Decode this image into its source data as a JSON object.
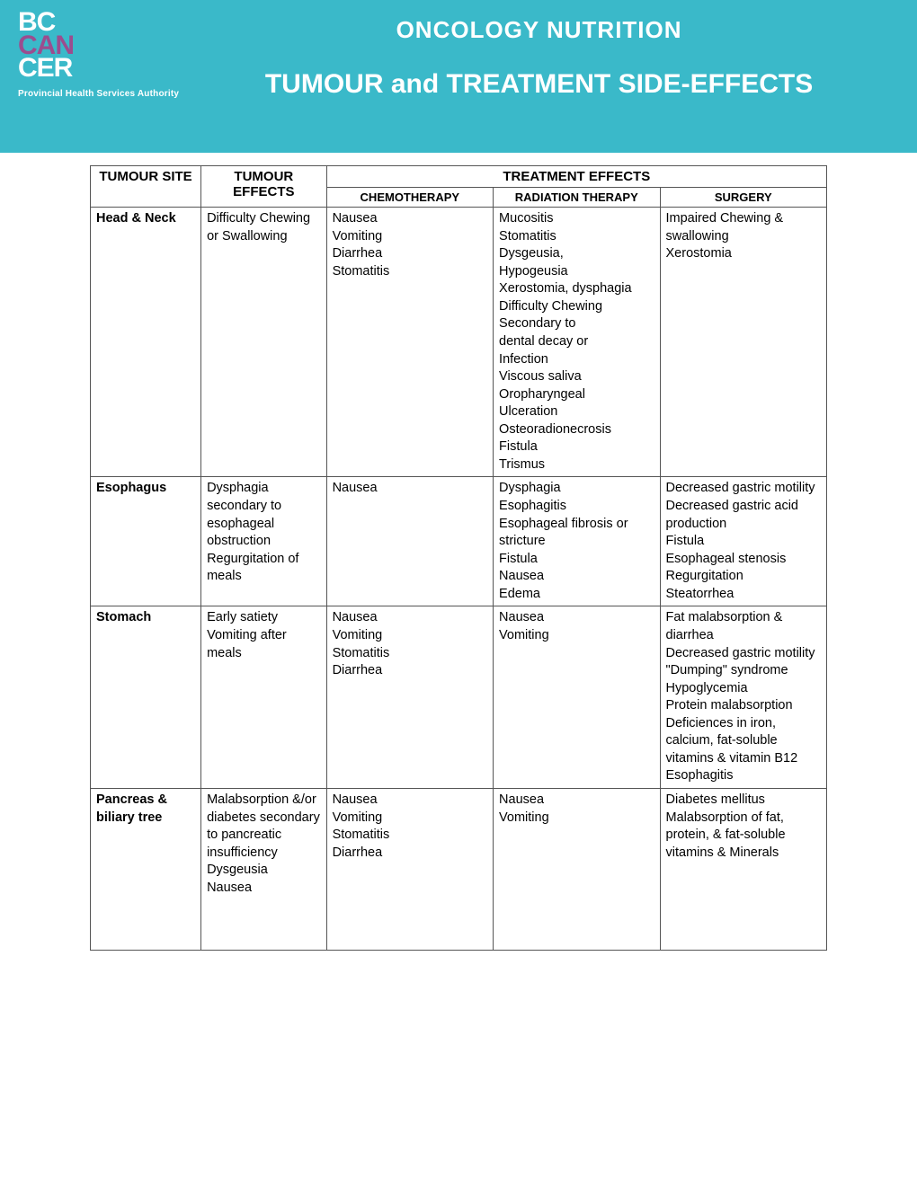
{
  "header": {
    "logo": {
      "line1": "BC",
      "line2": "CAN",
      "line3": "CER",
      "sub": "Provincial Health Services Authority"
    },
    "title1": "ONCOLOGY NUTRITION",
    "title2": "TUMOUR and TREATMENT SIDE-EFFECTS"
  },
  "table": {
    "headers": {
      "site": "TUMOUR SITE",
      "effects": "TUMOUR EFFECTS",
      "treatment": "TREATMENT EFFECTS",
      "chemo": "CHEMOTHERAPY",
      "radiation": "RADIATION THERAPY",
      "surgery": "SURGERY"
    },
    "rows": [
      {
        "site": "Head & Neck",
        "effects": "Difficulty Chewing or Swallowing",
        "chemo": "Nausea\nVomiting\nDiarrhea\nStomatitis",
        "radiation": "Mucositis\nStomatitis\nDysgeusia,\nHypogeusia\nXerostomia, dysphagia\nDifficulty Chewing\nSecondary to\ndental decay or\nInfection\nViscous saliva\nOropharyngeal\nUlceration\nOsteoradionecrosis\nFistula\nTrismus",
        "surgery": "Impaired Chewing & swallowing\nXerostomia"
      },
      {
        "site": "Esophagus",
        "effects": "Dysphagia secondary to esophageal obstruction\nRegurgitation of meals",
        "chemo": "Nausea",
        "radiation": "Dysphagia\nEsophagitis\nEsophageal fibrosis or stricture\nFistula\nNausea\nEdema",
        "surgery": "Decreased gastric motility\nDecreased gastric acid production\nFistula\nEsophageal stenosis\nRegurgitation\nSteatorrhea"
      },
      {
        "site": "Stomach",
        "effects": "Early satiety\nVomiting after meals",
        "chemo": "Nausea\nVomiting\nStomatitis\nDiarrhea",
        "radiation": "Nausea\nVomiting",
        "surgery": "Fat malabsorption & diarrhea\nDecreased gastric motility\n\"Dumping\" syndrome\nHypoglycemia\nProtein malabsorption\nDeficiences in iron, calcium, fat-soluble vitamins & vitamin B12\nEsophagitis"
      },
      {
        "site": "Pancreas & biliary tree",
        "effects": "Malabsorption &/or diabetes secondary to pancreatic insufficiency\nDysgeusia\nNausea",
        "chemo": "Nausea\nVomiting\nStomatitis\nDiarrhea",
        "radiation": "Nausea\nVomiting",
        "surgery": "Diabetes mellitus\nMalabsorption of fat, protein, & fat-soluble vitamins & Minerals"
      }
    ]
  },
  "colors": {
    "header_bg": "#3ab9c9",
    "logo_accent": "#9b4d8f",
    "text_white": "#ffffff",
    "border": "#555555"
  }
}
